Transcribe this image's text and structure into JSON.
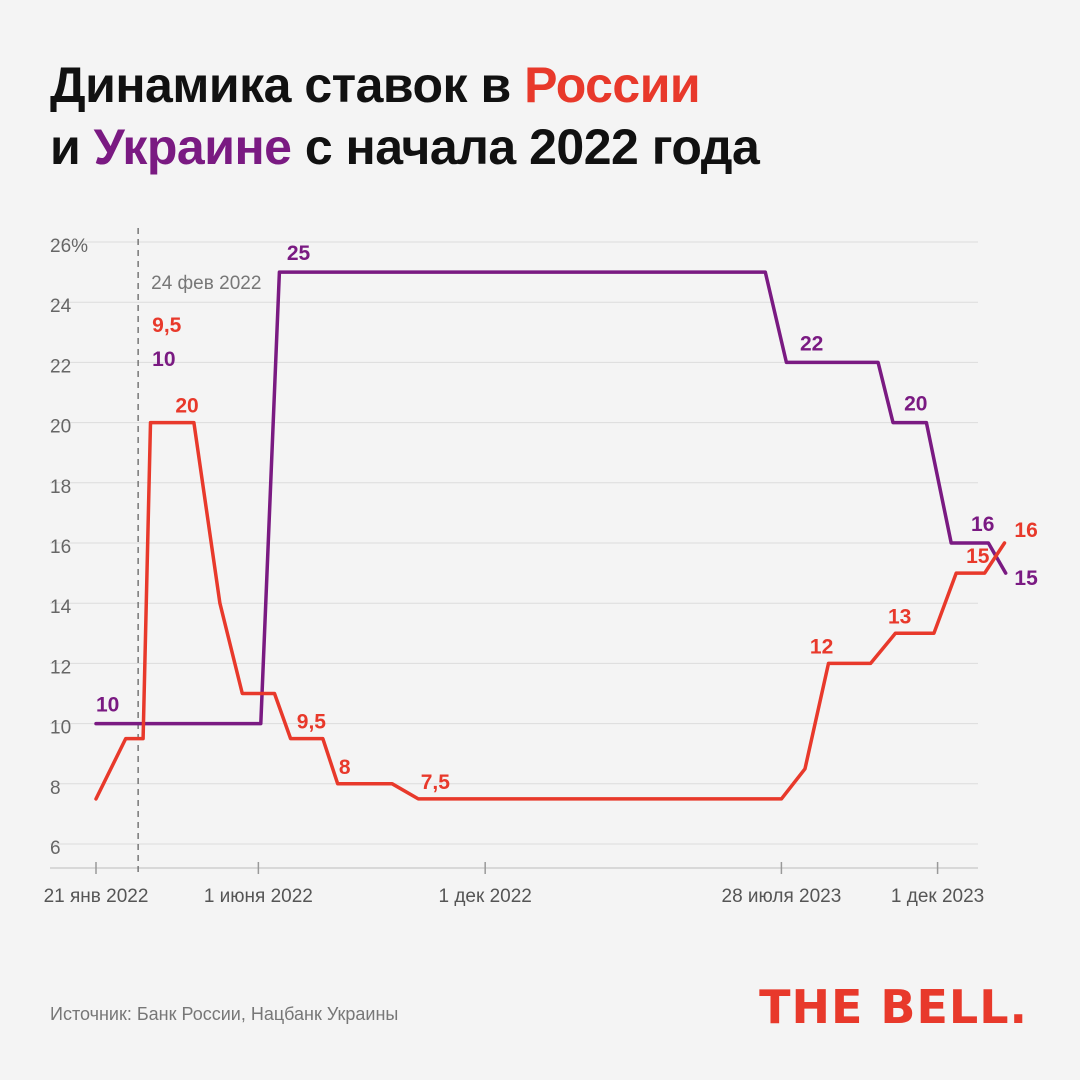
{
  "title": {
    "part1": "Динамика ставок в ",
    "russia": "России",
    "part2": "и ",
    "ukraine": "Украине",
    "part3": " с начала 2022 года"
  },
  "source": "Источник: Банк России, Нацбанк Украины",
  "logo": "THE BELL.",
  "colors": {
    "russia": "#e8392b",
    "ukraine": "#7a1a82"
  },
  "chart_data": {
    "type": "line",
    "ylim": [
      6,
      26
    ],
    "y_ticks": [
      {
        "value": 26,
        "label": "26%"
      },
      {
        "value": 24,
        "label": "24"
      },
      {
        "value": 22,
        "label": "22"
      },
      {
        "value": 20,
        "label": "20"
      },
      {
        "value": 18,
        "label": "18"
      },
      {
        "value": 16,
        "label": "16"
      },
      {
        "value": 14,
        "label": "14"
      },
      {
        "value": 12,
        "label": "12"
      },
      {
        "value": 10,
        "label": "10"
      },
      {
        "value": 8,
        "label": "8"
      },
      {
        "value": 6,
        "label": "6"
      }
    ],
    "xlim": [
      "2022-01-21",
      "2024-01-01"
    ],
    "x_ticks": [
      {
        "date": "2022-01-21",
        "label": "21 янв 2022"
      },
      {
        "date": "2022-06-01",
        "label": "1 июня 2022"
      },
      {
        "date": "2022-12-01",
        "label": "1 дек 2022"
      },
      {
        "date": "2023-07-28",
        "label": "28 июля 2023"
      },
      {
        "date": "2023-12-01",
        "label": "1 дек 2023"
      }
    ],
    "event": {
      "date": "2022-02-24",
      "label": "24 фев 2022"
    },
    "series": [
      {
        "name": "Россия",
        "color": "#e8392b",
        "points": [
          [
            "2022-01-21",
            7.5
          ],
          [
            "2022-02-14",
            9.5
          ],
          [
            "2022-02-28",
            9.5
          ],
          [
            "2022-03-06",
            20
          ],
          [
            "2022-04-10",
            20
          ],
          [
            "2022-05-01",
            14
          ],
          [
            "2022-05-19",
            11
          ],
          [
            "2022-06-14",
            11
          ],
          [
            "2022-06-27",
            9.5
          ],
          [
            "2022-07-23",
            9.5
          ],
          [
            "2022-08-04",
            8
          ],
          [
            "2022-09-17",
            8
          ],
          [
            "2022-10-08",
            7.5
          ],
          [
            "2023-07-28",
            7.5
          ],
          [
            "2023-08-16",
            8.5
          ],
          [
            "2023-09-04",
            12
          ],
          [
            "2023-10-08",
            12
          ],
          [
            "2023-10-28",
            13
          ],
          [
            "2023-11-28",
            13
          ],
          [
            "2023-12-16",
            15
          ],
          [
            "2024-01-08",
            15
          ],
          [
            "2024-01-24",
            16
          ]
        ],
        "labels": [
          {
            "date": "2022-03-06",
            "value": 9.5,
            "text": "9,5"
          },
          {
            "date": "2022-03-26",
            "value": 20,
            "text": "20"
          },
          {
            "date": "2022-07-02",
            "value": 9.5,
            "text": "9,5"
          },
          {
            "date": "2022-08-05",
            "value": 8,
            "text": "8"
          },
          {
            "date": "2022-10-10",
            "value": 7.5,
            "text": "7,5"
          },
          {
            "date": "2023-08-20",
            "value": 12,
            "text": "12"
          },
          {
            "date": "2023-10-22",
            "value": 13,
            "text": "13"
          },
          {
            "date": "2023-12-24",
            "value": 15,
            "text": "15"
          },
          {
            "date": "2024-02-01",
            "value": 16,
            "text": "16"
          }
        ]
      },
      {
        "name": "Украина",
        "color": "#7a1a82",
        "points": [
          [
            "2022-01-21",
            10
          ],
          [
            "2022-06-03",
            10
          ],
          [
            "2022-06-18",
            25
          ],
          [
            "2023-07-15",
            25
          ],
          [
            "2023-08-01",
            22
          ],
          [
            "2023-10-14",
            22
          ],
          [
            "2023-10-26",
            20
          ],
          [
            "2023-11-22",
            20
          ],
          [
            "2023-12-12",
            16
          ],
          [
            "2024-01-11",
            16
          ],
          [
            "2024-01-25",
            15
          ]
        ],
        "labels": [
          {
            "date": "2022-01-21",
            "value": 10,
            "text": "10"
          },
          {
            "date": "2022-03-06",
            "value": 10,
            "text": "10"
          },
          {
            "date": "2022-06-24",
            "value": 25,
            "text": "25"
          },
          {
            "date": "2023-08-12",
            "value": 22,
            "text": "22"
          },
          {
            "date": "2023-11-04",
            "value": 20,
            "text": "20"
          },
          {
            "date": "2023-12-28",
            "value": 16,
            "text": "16"
          },
          {
            "date": "2024-02-01",
            "value": 15,
            "text": "15"
          }
        ]
      }
    ]
  }
}
